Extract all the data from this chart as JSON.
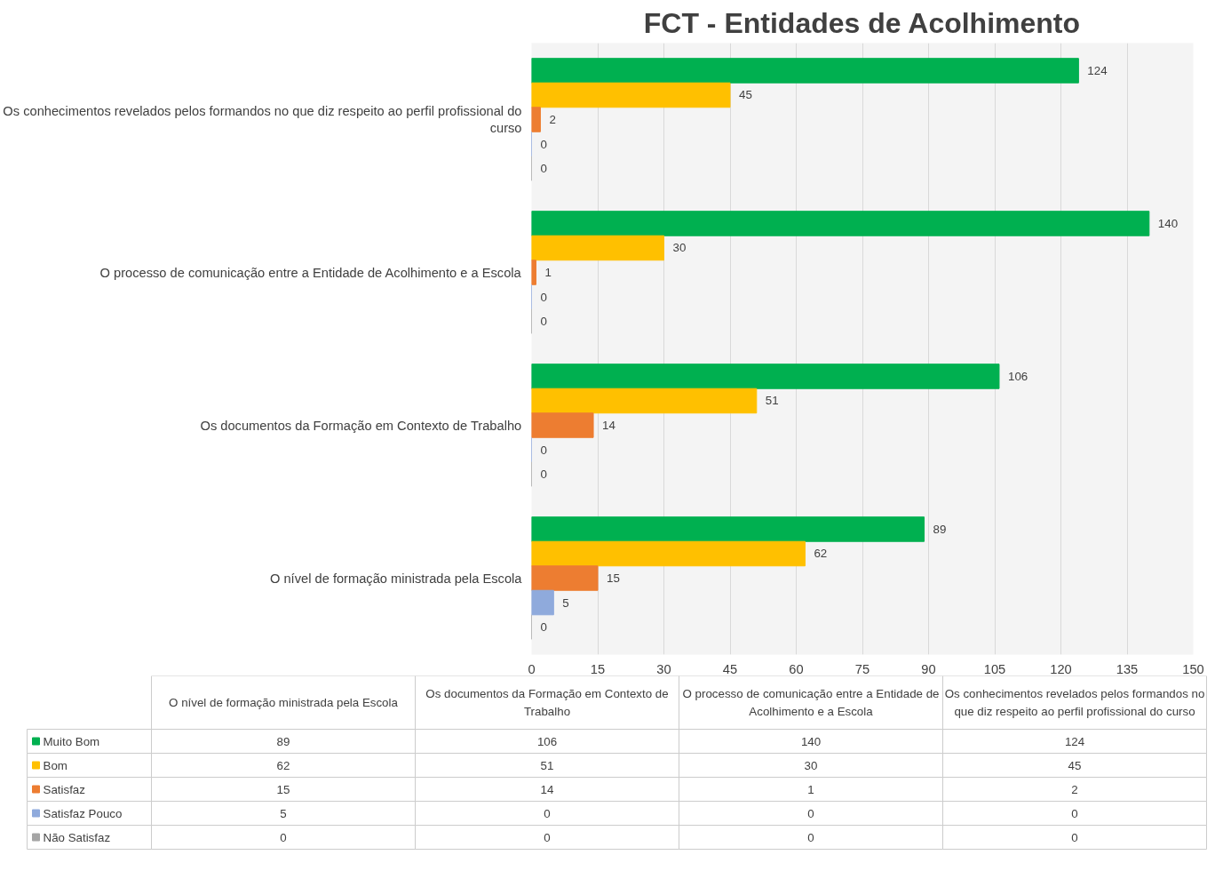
{
  "chart_data": {
    "type": "bar",
    "orientation": "horizontal",
    "title": "FCT - Entidades de Acolhimento",
    "categories": [
      "Os conhecimentos revelados pelos formandos no que diz respeito ao perfil profissional do curso",
      "O processo de comunicação entre a Entidade de Acolhimento e a Escola",
      "Os documentos da Formação em Contexto de Trabalho",
      "O nível de formação ministrada pela Escola"
    ],
    "series": [
      {
        "name": "Muito Bom",
        "color": "#00b050",
        "values": [
          124,
          140,
          106,
          89
        ],
        "value_labels": [
          "124",
          "140",
          "106",
          "89"
        ]
      },
      {
        "name": "Bom",
        "color": "#ffc000",
        "values": [
          45,
          30,
          51,
          62
        ],
        "value_labels": [
          "45",
          "30",
          "51",
          "62"
        ]
      },
      {
        "name": "Satisfaz",
        "color": "#ed7d31",
        "values": [
          2,
          1,
          14,
          15
        ],
        "value_labels": [
          "2",
          "1",
          "14",
          "15"
        ]
      },
      {
        "name": "Satisfaz Pouco",
        "color": "#8faadc",
        "values": [
          0,
          0,
          0,
          5
        ],
        "value_labels": [
          "0",
          "0",
          "0",
          "5"
        ]
      },
      {
        "name": "Não Satisfaz",
        "color": "#a5a5a5",
        "values": [
          0,
          0,
          0,
          0
        ],
        "value_labels": [
          "0",
          "0",
          "0",
          "0"
        ]
      }
    ],
    "xlim": [
      0,
      150
    ],
    "xticks": [
      0,
      15,
      30,
      45,
      60,
      75,
      90,
      105,
      120,
      135,
      150
    ],
    "grid": "x",
    "data_labels": true,
    "legend": "bottom"
  }
}
